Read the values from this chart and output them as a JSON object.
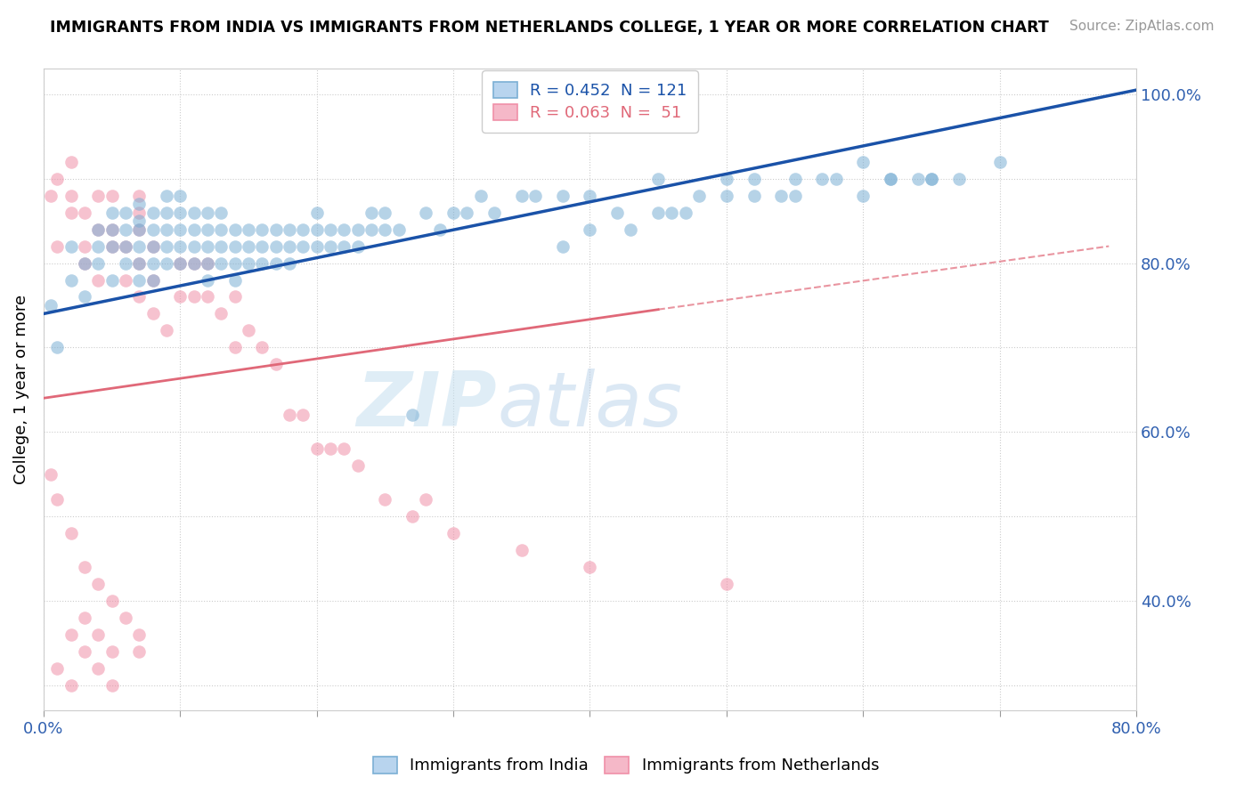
{
  "title": "IMMIGRANTS FROM INDIA VS IMMIGRANTS FROM NETHERLANDS COLLEGE, 1 YEAR OR MORE CORRELATION CHART",
  "source": "Source: ZipAtlas.com",
  "ylabel": "College, 1 year or more",
  "legend_india": {
    "R": 0.452,
    "N": 121,
    "color": "#b8d4ee"
  },
  "legend_netherlands": {
    "R": 0.063,
    "N": 51,
    "color": "#f5b8c8"
  },
  "india_color": "#7bafd4",
  "netherlands_color": "#f090a8",
  "trend_india_color": "#1a52a8",
  "trend_netherlands_color": "#e06878",
  "trend_dashed_color": "#e06878",
  "watermark_zip": "ZIP",
  "watermark_atlas": "atlas",
  "xlim": [
    0.0,
    0.8
  ],
  "ylim": [
    0.27,
    1.03
  ],
  "india_x": [
    0.005,
    0.01,
    0.02,
    0.02,
    0.03,
    0.03,
    0.04,
    0.04,
    0.04,
    0.05,
    0.05,
    0.05,
    0.05,
    0.06,
    0.06,
    0.06,
    0.06,
    0.07,
    0.07,
    0.07,
    0.07,
    0.07,
    0.07,
    0.08,
    0.08,
    0.08,
    0.08,
    0.08,
    0.09,
    0.09,
    0.09,
    0.09,
    0.09,
    0.1,
    0.1,
    0.1,
    0.1,
    0.1,
    0.11,
    0.11,
    0.11,
    0.11,
    0.12,
    0.12,
    0.12,
    0.12,
    0.12,
    0.13,
    0.13,
    0.13,
    0.13,
    0.14,
    0.14,
    0.14,
    0.14,
    0.15,
    0.15,
    0.15,
    0.16,
    0.16,
    0.16,
    0.17,
    0.17,
    0.17,
    0.18,
    0.18,
    0.18,
    0.19,
    0.19,
    0.2,
    0.2,
    0.2,
    0.21,
    0.21,
    0.22,
    0.22,
    0.23,
    0.23,
    0.24,
    0.24,
    0.25,
    0.25,
    0.26,
    0.27,
    0.28,
    0.29,
    0.3,
    0.31,
    0.32,
    0.33,
    0.35,
    0.36,
    0.38,
    0.4,
    0.42,
    0.45,
    0.48,
    0.5,
    0.52,
    0.55,
    0.58,
    0.6,
    0.62,
    0.65,
    0.38,
    0.4,
    0.43,
    0.45,
    0.46,
    0.47,
    0.5,
    0.52,
    0.54,
    0.55,
    0.57,
    0.6,
    0.62,
    0.64,
    0.65,
    0.67,
    0.7
  ],
  "india_y": [
    0.75,
    0.7,
    0.78,
    0.82,
    0.76,
    0.8,
    0.82,
    0.84,
    0.8,
    0.78,
    0.82,
    0.84,
    0.86,
    0.8,
    0.82,
    0.84,
    0.86,
    0.78,
    0.8,
    0.82,
    0.84,
    0.85,
    0.87,
    0.78,
    0.8,
    0.82,
    0.84,
    0.86,
    0.8,
    0.82,
    0.84,
    0.86,
    0.88,
    0.8,
    0.82,
    0.84,
    0.86,
    0.88,
    0.8,
    0.82,
    0.84,
    0.86,
    0.78,
    0.8,
    0.82,
    0.84,
    0.86,
    0.8,
    0.82,
    0.84,
    0.86,
    0.78,
    0.8,
    0.82,
    0.84,
    0.8,
    0.82,
    0.84,
    0.8,
    0.82,
    0.84,
    0.8,
    0.82,
    0.84,
    0.8,
    0.82,
    0.84,
    0.82,
    0.84,
    0.82,
    0.84,
    0.86,
    0.82,
    0.84,
    0.82,
    0.84,
    0.82,
    0.84,
    0.84,
    0.86,
    0.84,
    0.86,
    0.84,
    0.62,
    0.86,
    0.84,
    0.86,
    0.86,
    0.88,
    0.86,
    0.88,
    0.88,
    0.88,
    0.88,
    0.86,
    0.9,
    0.88,
    0.9,
    0.9,
    0.9,
    0.9,
    0.92,
    0.9,
    0.9,
    0.82,
    0.84,
    0.84,
    0.86,
    0.86,
    0.86,
    0.88,
    0.88,
    0.88,
    0.88,
    0.9,
    0.88,
    0.9,
    0.9,
    0.9,
    0.9,
    0.92
  ],
  "netherlands_x": [
    0.005,
    0.01,
    0.01,
    0.02,
    0.02,
    0.02,
    0.03,
    0.03,
    0.03,
    0.04,
    0.04,
    0.04,
    0.05,
    0.05,
    0.05,
    0.06,
    0.06,
    0.07,
    0.07,
    0.07,
    0.07,
    0.07,
    0.08,
    0.08,
    0.08,
    0.09,
    0.1,
    0.1,
    0.11,
    0.11,
    0.12,
    0.12,
    0.13,
    0.14,
    0.14,
    0.15,
    0.16,
    0.17,
    0.18,
    0.19,
    0.2,
    0.21,
    0.22,
    0.23,
    0.25,
    0.27,
    0.28,
    0.3,
    0.35,
    0.4,
    0.5
  ],
  "netherlands_y": [
    0.88,
    0.9,
    0.82,
    0.88,
    0.86,
    0.92,
    0.8,
    0.82,
    0.86,
    0.78,
    0.84,
    0.88,
    0.82,
    0.84,
    0.88,
    0.78,
    0.82,
    0.76,
    0.8,
    0.84,
    0.86,
    0.88,
    0.74,
    0.78,
    0.82,
    0.72,
    0.76,
    0.8,
    0.76,
    0.8,
    0.76,
    0.8,
    0.74,
    0.7,
    0.76,
    0.72,
    0.7,
    0.68,
    0.62,
    0.62,
    0.58,
    0.58,
    0.58,
    0.56,
    0.52,
    0.5,
    0.52,
    0.48,
    0.46,
    0.44,
    0.42
  ],
  "neth_extra_x": [
    0.005,
    0.01,
    0.02,
    0.03,
    0.04,
    0.05,
    0.06,
    0.07,
    0.07,
    0.05,
    0.04,
    0.03,
    0.02,
    0.03,
    0.04,
    0.05,
    0.01,
    0.02
  ],
  "neth_extra_y": [
    0.55,
    0.52,
    0.48,
    0.44,
    0.42,
    0.4,
    0.38,
    0.36,
    0.34,
    0.34,
    0.36,
    0.38,
    0.36,
    0.34,
    0.32,
    0.3,
    0.32,
    0.3
  ],
  "trend_india_x0": 0.0,
  "trend_india_y0": 0.74,
  "trend_india_x1": 0.8,
  "trend_india_y1": 1.005,
  "trend_neth_solid_x0": 0.0,
  "trend_neth_solid_y0": 0.64,
  "trend_neth_solid_x1": 0.45,
  "trend_neth_solid_y1": 0.745,
  "trend_neth_dash_x0": 0.45,
  "trend_neth_dash_y0": 0.745,
  "trend_neth_dash_x1": 0.78,
  "trend_neth_dash_y1": 0.82
}
